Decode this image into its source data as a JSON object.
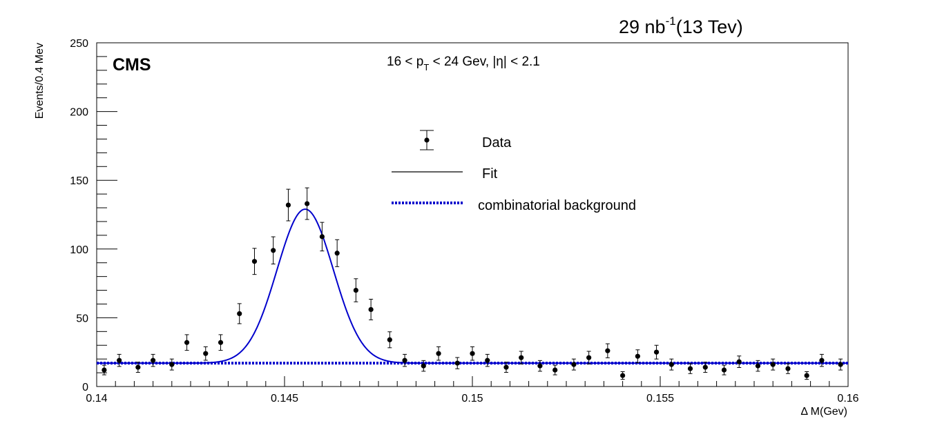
{
  "header": {
    "lumi_value": "29 nb",
    "lumi_exp": "-1",
    "lumi_energy": "(13 Tev)"
  },
  "labels": {
    "cms": "CMS",
    "cut_pre": "16 < p",
    "cut_sub": "T",
    "cut_post": " < 24 Gev, |η| < 2.1"
  },
  "chart_data": {
    "type": "scatter",
    "xlabel": "Δ M(Gev)",
    "ylabel": "Events/0.4 Mev",
    "xlim": [
      0.14,
      0.16
    ],
    "ylim": [
      0,
      250
    ],
    "x_ticks": [
      0.14,
      0.145,
      0.15,
      0.155,
      0.16
    ],
    "x_tick_labels": [
      "0.14",
      "0.145",
      "0.15",
      "0.155",
      "0.16"
    ],
    "y_ticks": [
      0,
      50,
      100,
      150,
      200,
      250
    ],
    "y_tick_labels": [
      "0",
      "50",
      "100",
      "150",
      "200",
      "250"
    ],
    "grid": false,
    "legend": {
      "position": "center",
      "entries": [
        {
          "label": "Data",
          "style": "marker-errorbar"
        },
        {
          "label": "Fit",
          "style": "line"
        },
        {
          "label": "combinatorial background",
          "style": "dotted-line"
        }
      ]
    },
    "series": [
      {
        "name": "Data",
        "style": "points-with-errors",
        "color": "#000000",
        "x": [
          0.1402,
          0.1406,
          0.1411,
          0.1415,
          0.142,
          0.1424,
          0.1429,
          0.1433,
          0.1438,
          0.1442,
          0.1447,
          0.1451,
          0.1456,
          0.146,
          0.1464,
          0.1469,
          0.1473,
          0.1478,
          0.1482,
          0.1487,
          0.1491,
          0.1496,
          0.15,
          0.1504,
          0.1509,
          0.1513,
          0.1518,
          0.1522,
          0.1527,
          0.1531,
          0.1536,
          0.154,
          0.1544,
          0.1549,
          0.1553,
          0.1558,
          0.1562,
          0.1567,
          0.1571,
          0.1576,
          0.158,
          0.1584,
          0.1589,
          0.1593,
          0.1598
        ],
        "y": [
          12,
          19,
          14,
          19,
          16,
          32,
          24,
          32,
          53,
          91,
          99,
          132,
          133,
          109,
          97,
          70,
          56,
          34,
          19,
          15,
          24,
          17,
          24,
          19,
          14,
          21,
          15,
          12,
          16,
          21,
          26,
          8,
          22,
          25,
          16,
          13,
          14,
          12,
          18,
          15,
          16,
          13,
          8,
          19,
          16
        ],
        "yerr": [
          3.5,
          4.4,
          3.7,
          4.4,
          4.0,
          5.7,
          4.9,
          5.7,
          7.3,
          9.5,
          9.9,
          11.5,
          11.5,
          10.4,
          9.8,
          8.4,
          7.5,
          5.8,
          4.4,
          3.9,
          4.9,
          4.1,
          4.9,
          4.4,
          3.7,
          4.6,
          3.9,
          3.5,
          4.0,
          4.6,
          5.1,
          2.8,
          4.7,
          5.0,
          4.0,
          3.6,
          3.7,
          3.5,
          4.2,
          3.9,
          4.0,
          3.6,
          2.8,
          4.4,
          4.0
        ]
      },
      {
        "name": "Fit",
        "style": "solid-line",
        "color": "#0000cc",
        "function": "gaussian+constant",
        "mean": 0.14555,
        "sigma": 0.00075,
        "amplitude": 112,
        "baseline": 17
      },
      {
        "name": "combinatorial background",
        "style": "dotted-line",
        "color": "#0000cc",
        "y": 17
      }
    ]
  }
}
